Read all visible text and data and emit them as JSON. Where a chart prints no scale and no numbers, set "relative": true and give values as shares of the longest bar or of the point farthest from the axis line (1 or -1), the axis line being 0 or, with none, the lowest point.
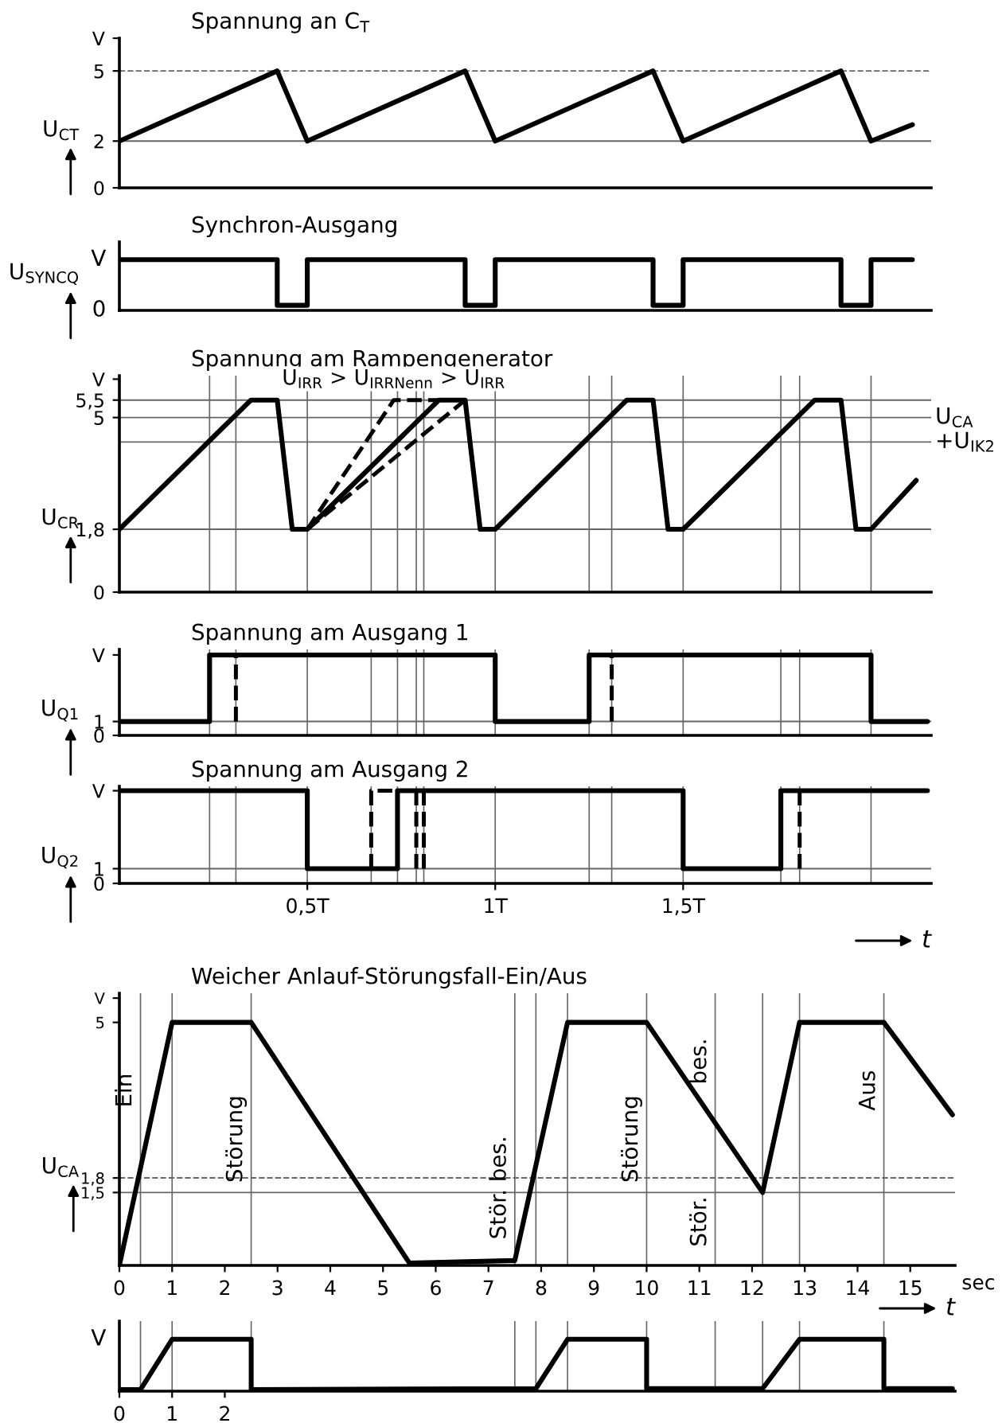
{
  "chart_data": [
    {
      "type": "line",
      "title": "Spannung an C$_{T}$",
      "ylabel": "U$_{CT}$",
      "xlim": [
        0,
        2.16
      ],
      "ylim": [
        0,
        6.4
      ],
      "yticks": [
        0,
        2,
        5,
        {
          "value": 6.4,
          "label": "V"
        }
      ],
      "tick_labels": "y",
      "series": [
        {
          "color": "#000000",
          "x": [
            0,
            0.42,
            0.5,
            0.92,
            1.0,
            1.42,
            1.5,
            1.92,
            2.0,
            2.11
          ],
          "values": [
            2,
            5,
            2,
            5,
            2,
            5,
            2,
            5,
            2,
            2.7
          ]
        }
      ],
      "ref_lines": [
        {
          "axis": "y",
          "value": 2,
          "label": null
        },
        {
          "axis": "y",
          "value": 5,
          "label": null,
          "line_style": "dashed"
        }
      ]
    },
    {
      "type": "line",
      "title": "Synchron-Ausgang",
      "ylabel": "U$_{SYNCQ}$",
      "relative": true,
      "xlim": [
        0,
        2.16
      ],
      "tick_labels": false,
      "annotations": [
        "V",
        "0"
      ],
      "series": [
        {
          "color": "#000000",
          "x": [
            0,
            0.42,
            0.42,
            0.5,
            0.5,
            0.92,
            0.92,
            1.0,
            1.0,
            1.42,
            1.42,
            1.5,
            1.5,
            1.92,
            1.92,
            2.0,
            2.0,
            2.11
          ],
          "values": [
            1,
            1,
            0.1,
            0.1,
            1,
            1,
            0.1,
            0.1,
            1,
            1,
            0.1,
            0.1,
            1,
            1,
            0.1,
            0.1,
            1,
            1
          ]
        }
      ]
    },
    {
      "type": "line",
      "title": "Spannung am Rampengenerator",
      "ylabel": "U$_{CR}$",
      "xlim": [
        0,
        2.16
      ],
      "ylim": [
        0,
        6.2
      ],
      "yticks": [
        0,
        {
          "value": 1.8,
          "label": "1,8"
        },
        5,
        {
          "value": 5.5,
          "label": "5,5"
        },
        {
          "value": 6.1,
          "label": "V"
        }
      ],
      "tick_labels": "y",
      "annotations": [
        {
          "text": "U$_{IRR}$ > U$_{IRRNenn}$ > U$_{IRR}$",
          "x": 0.73,
          "y": 5.5
        }
      ],
      "series": [
        {
          "color": "#000000",
          "x": [
            0,
            0.35,
            0.42,
            0.46,
            0.5,
            0.85,
            0.92,
            0.96,
            1.0,
            1.35,
            1.42,
            1.46,
            1.5,
            1.85,
            1.92,
            1.96,
            2.0,
            2.12
          ],
          "values": [
            1.8,
            5.5,
            5.5,
            1.8,
            1.8,
            5.5,
            5.5,
            1.8,
            1.8,
            5.5,
            5.5,
            1.8,
            1.8,
            5.5,
            5.5,
            1.8,
            1.8,
            3.2
          ]
        },
        {
          "color": "#000000",
          "line_style": "dashed",
          "x": [
            0.5,
            0.73,
            0.85
          ],
          "values": [
            1.8,
            5.5,
            5.5
          ]
        },
        {
          "color": "#000000",
          "line_style": "dashed",
          "x": [
            0.5,
            0.92
          ],
          "values": [
            1.8,
            5.5
          ]
        }
      ],
      "ref_lines": [
        {
          "axis": "y",
          "value": 1.8,
          "label": null
        },
        {
          "axis": "y",
          "value": 4.3,
          "label": "+U$_{IK2}$"
        },
        {
          "axis": "y",
          "value": 5,
          "label": "U$_{CA}$"
        },
        {
          "axis": "y",
          "value": 5.5,
          "label": null
        },
        {
          "axis": "x",
          "value": 0.24
        },
        {
          "axis": "x",
          "value": 0.31
        },
        {
          "axis": "x",
          "value": 0.5
        },
        {
          "axis": "x",
          "value": 0.67
        },
        {
          "axis": "x",
          "value": 0.74
        },
        {
          "axis": "x",
          "value": 0.79
        },
        {
          "axis": "x",
          "value": 0.81
        },
        {
          "axis": "x",
          "value": 1.0
        },
        {
          "axis": "x",
          "value": 1.25
        },
        {
          "axis": "x",
          "value": 1.31
        },
        {
          "axis": "x",
          "value": 1.5
        },
        {
          "axis": "x",
          "value": 1.76
        },
        {
          "axis": "x",
          "value": 1.81
        },
        {
          "axis": "x",
          "value": 2.0
        }
      ]
    },
    {
      "type": "line",
      "title": "Spannung am Ausgang 1",
      "ylabel": "U$_{Q1}$",
      "xlim": [
        0,
        2.16
      ],
      "ylim": [
        0,
        6.2
      ],
      "yticks": [
        0,
        1,
        {
          "value": 5.8,
          "label": "V"
        }
      ],
      "tick_labels": "y",
      "series": [
        {
          "color": "#000000",
          "x": [
            0,
            0.24,
            0.24,
            1.0,
            1.0,
            1.25,
            1.25,
            2.0,
            2.0,
            2.15
          ],
          "values": [
            1,
            1,
            5.8,
            5.8,
            1,
            1,
            5.8,
            5.8,
            1,
            1
          ]
        },
        {
          "color": "#000000",
          "line_style": "dashed",
          "x": [
            0.31,
            0.31
          ],
          "values": [
            1,
            5.8
          ]
        },
        {
          "color": "#000000",
          "line_style": "dashed",
          "x": [
            1.31,
            1.31
          ],
          "values": [
            1,
            5.8
          ]
        }
      ],
      "ref_lines": [
        {
          "axis": "y",
          "value": 1,
          "label": null
        },
        {
          "axis": "x",
          "value": 0.24
        },
        {
          "axis": "x",
          "value": 0.31
        },
        {
          "axis": "x",
          "value": 0.5
        },
        {
          "axis": "x",
          "value": 0.67
        },
        {
          "axis": "x",
          "value": 0.74
        },
        {
          "axis": "x",
          "value": 0.79
        },
        {
          "axis": "x",
          "value": 0.81
        },
        {
          "axis": "x",
          "value": 1.0
        },
        {
          "axis": "x",
          "value": 1.25
        },
        {
          "axis": "x",
          "value": 1.31
        },
        {
          "axis": "x",
          "value": 1.5
        },
        {
          "axis": "x",
          "value": 1.76
        },
        {
          "axis": "x",
          "value": 1.81
        },
        {
          "axis": "x",
          "value": 2.0
        }
      ]
    },
    {
      "type": "line",
      "title": "Spannung am Ausgang 2",
      "ylabel": "U$_{Q2}$",
      "xlabel": "t",
      "xlim": [
        0,
        2.16
      ],
      "ylim": [
        0,
        6.6
      ],
      "yticks": [
        0,
        1,
        {
          "value": 6.3,
          "label": "V"
        }
      ],
      "xticks": [
        {
          "value": 0.5,
          "label": "0,5T"
        },
        {
          "value": 1,
          "label": "1T"
        },
        {
          "value": 1.5,
          "label": "1,5T"
        }
      ],
      "series": [
        {
          "color": "#000000",
          "x": [
            0,
            0.5,
            0.5,
            0.74,
            0.74,
            1.5,
            1.5,
            1.76,
            1.76,
            2.15
          ],
          "values": [
            6.3,
            6.3,
            1,
            1,
            6.3,
            6.3,
            1,
            1,
            6.3,
            6.3
          ]
        },
        {
          "color": "#000000",
          "line_style": "dashed",
          "x": [
            0.67,
            0.67,
            0.74
          ],
          "values": [
            1,
            6.3,
            6.3
          ]
        },
        {
          "color": "#000000",
          "line_style": "dashed",
          "x": [
            0.79,
            0.79
          ],
          "values": [
            1,
            6.3
          ]
        },
        {
          "color": "#000000",
          "line_style": "dashed",
          "x": [
            0.81,
            0.81
          ],
          "values": [
            1,
            6.3
          ]
        },
        {
          "color": "#000000",
          "line_style": "dashed",
          "x": [
            1.81,
            1.81
          ],
          "values": [
            1,
            6.3
          ]
        }
      ],
      "ref_lines": [
        {
          "axis": "y",
          "value": 1,
          "label": null
        },
        {
          "axis": "x",
          "value": 0.24
        },
        {
          "axis": "x",
          "value": 0.31
        },
        {
          "axis": "x",
          "value": 0.5
        },
        {
          "axis": "x",
          "value": 0.67
        },
        {
          "axis": "x",
          "value": 0.74
        },
        {
          "axis": "x",
          "value": 0.79
        },
        {
          "axis": "x",
          "value": 0.81
        },
        {
          "axis": "x",
          "value": 1.0
        },
        {
          "axis": "x",
          "value": 1.25
        },
        {
          "axis": "x",
          "value": 1.31
        },
        {
          "axis": "x",
          "value": 1.5
        },
        {
          "axis": "x",
          "value": 1.76
        },
        {
          "axis": "x",
          "value": 1.81
        },
        {
          "axis": "x",
          "value": 2.0
        }
      ]
    },
    {
      "type": "line",
      "title": "Weicher Anlauf-Störungsfall-Ein/Aus",
      "ylabel": "U$_{CA}$",
      "xlabel": "sec",
      "xlim": [
        0,
        15.85
      ],
      "ylim": [
        0,
        5.6
      ],
      "xticks": [
        0,
        1,
        2,
        3,
        4,
        5,
        6,
        7,
        8,
        9,
        10,
        11,
        12,
        13,
        14,
        15
      ],
      "yticks": [
        {
          "value": 1.5,
          "label": "1,5"
        },
        {
          "value": 1.8,
          "label": "1,8"
        },
        5,
        {
          "value": 5.5,
          "label": "V"
        }
      ],
      "annotations": [
        "t",
        {
          "text": "Ein",
          "x": 0.4,
          "y": 3.6
        },
        {
          "text": "Störung",
          "x": 2.5,
          "y": 2.6
        },
        {
          "text": "Stör. bes.",
          "x": 7.5,
          "y": 1.6
        },
        {
          "text": "Störung",
          "x": 10.0,
          "y": 2.6
        },
        {
          "text": "Stör.",
          "x": 11.3,
          "y": 0.9
        },
        {
          "text": "bes.",
          "x": 11.3,
          "y": 4.2
        },
        {
          "text": "Aus",
          "x": 14.5,
          "y": 3.6
        }
      ],
      "series": [
        {
          "color": "#000000",
          "x": [
            0,
            1,
            2.5,
            5.5,
            7.5,
            8.5,
            10.0,
            12.2,
            12.9,
            14.5,
            15.8
          ],
          "values": [
            0,
            5,
            5,
            0.05,
            0.1,
            5,
            5,
            1.5,
            5,
            5,
            3.1
          ]
        }
      ],
      "ref_lines": [
        {
          "axis": "y",
          "value": 1.5,
          "label": null
        },
        {
          "axis": "y",
          "value": 1.8,
          "label": null,
          "line_style": "dashed"
        },
        {
          "axis": "x",
          "value": 0.4
        },
        {
          "axis": "x",
          "value": 1
        },
        {
          "axis": "x",
          "value": 2.5
        },
        {
          "axis": "x",
          "value": 7.5
        },
        {
          "axis": "x",
          "value": 7.9
        },
        {
          "axis": "x",
          "value": 8.5
        },
        {
          "axis": "x",
          "value": 10.0
        },
        {
          "axis": "x",
          "value": 11.3
        },
        {
          "axis": "x",
          "value": 12.2
        },
        {
          "axis": "x",
          "value": 12.9
        },
        {
          "axis": "x",
          "value": 14.5
        }
      ]
    },
    {
      "type": "line",
      "relative": true,
      "xlim": [
        0,
        15.85
      ],
      "xticks": [
        0,
        1,
        2
      ],
      "tick_labels": "x",
      "annotations": [
        "V"
      ],
      "series": [
        {
          "color": "#000000",
          "x": [
            0,
            0.4,
            1,
            2.5,
            2.5,
            7.9,
            8.5,
            10.0,
            10.0,
            12.2,
            12.9,
            14.5,
            14.5,
            15.8
          ],
          "values": [
            0.03,
            0.03,
            1,
            1,
            0.03,
            0.05,
            1,
            1,
            0.05,
            0.05,
            1,
            1,
            0.05,
            0.05
          ]
        }
      ],
      "ref_lines": [
        {
          "axis": "x",
          "value": 0.4
        },
        {
          "axis": "x",
          "value": 1
        },
        {
          "axis": "x",
          "value": 2.5
        },
        {
          "axis": "x",
          "value": 7.5
        },
        {
          "axis": "x",
          "value": 7.9
        },
        {
          "axis": "x",
          "value": 8.5
        },
        {
          "axis": "x",
          "value": 10.0
        },
        {
          "axis": "x",
          "value": 11.3
        },
        {
          "axis": "x",
          "value": 12.2
        },
        {
          "axis": "x",
          "value": 12.9
        },
        {
          "axis": "x",
          "value": 14.5
        }
      ]
    }
  ]
}
